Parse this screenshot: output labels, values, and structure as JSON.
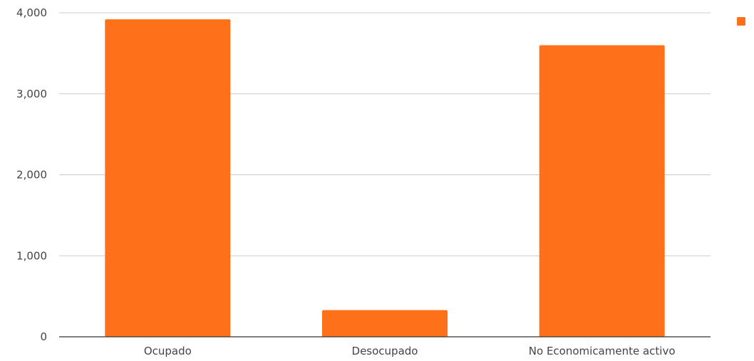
{
  "chart_data": {
    "type": "bar",
    "title": "",
    "xlabel": "",
    "ylabel": "",
    "categories": [
      "Ocupado",
      "Desocupado",
      "No Economicamente activo"
    ],
    "series": [
      {
        "values": [
          3920,
          330,
          3600
        ]
      }
    ],
    "ylim": [
      0,
      4000
    ],
    "yticks": [
      0,
      1000,
      2000,
      3000,
      4000
    ],
    "ytick_labels": [
      "0",
      "1,000",
      "2,000",
      "3,000",
      "4,000"
    ],
    "grid": true,
    "legend": "top-right",
    "colors": {
      "bar": "#ff7119",
      "grid": "#cccccc",
      "axis": "#333333"
    }
  }
}
